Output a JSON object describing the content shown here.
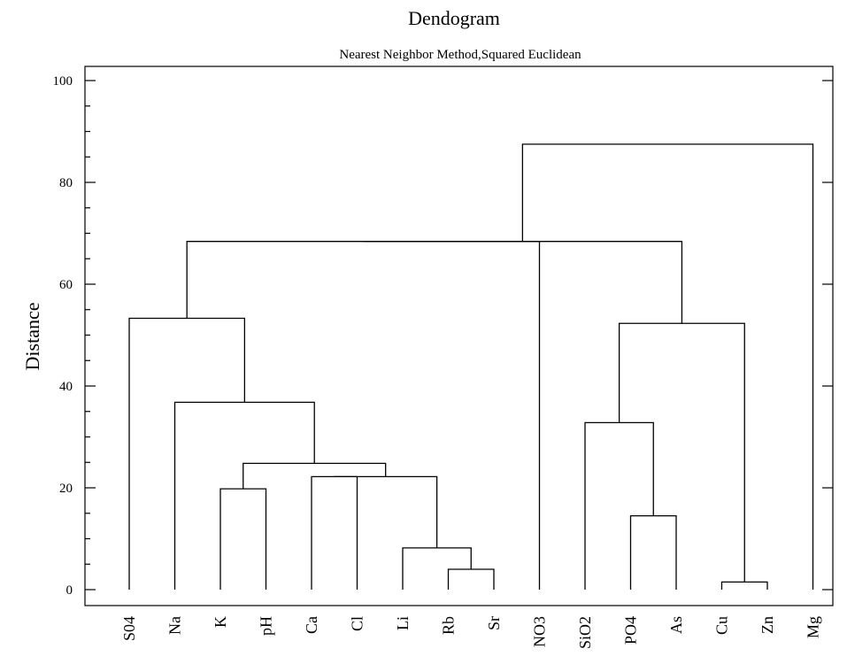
{
  "chart_data": {
    "type": "dendrogram",
    "title": "Dendogram",
    "subtitle": "Nearest Neighbor Method,Squared Euclidean",
    "ylabel": "Distance",
    "xlabel": "",
    "ylim": [
      0,
      100
    ],
    "yticks": [
      0,
      20,
      40,
      60,
      80,
      100
    ],
    "leaves": [
      "S04",
      "Na",
      "K",
      "pH",
      "Ca",
      "Cl",
      "Li",
      "Rb",
      "Sr",
      "NO3",
      "SiO2",
      "PO4",
      "As",
      "Cu",
      "Zn",
      "Mg"
    ],
    "merges": [
      {
        "left": "Cu",
        "right": "Zn",
        "height": 1.5
      },
      {
        "left": "Rb",
        "right": "Sr",
        "height": 4.0
      },
      {
        "left": "Li",
        "right": "Rb+Sr",
        "height": 8.2
      },
      {
        "left": "PO4",
        "right": "As",
        "height": 14.5
      },
      {
        "left": "K",
        "right": "pH",
        "height": 19.8
      },
      {
        "left": "Ca",
        "right": "Cl",
        "height": 22.2
      },
      {
        "left": "Ca+Cl",
        "right": "Li+Rb+Sr",
        "height": 22.2
      },
      {
        "left": "K+pH",
        "right": "Ca+Cl+Li+Rb+Sr",
        "height": 24.8
      },
      {
        "left": "SiO2",
        "right": "PO4+As",
        "height": 32.8
      },
      {
        "left": "Na",
        "right": "K+pH+Ca+Cl+Li+Rb+Sr",
        "height": 36.8
      },
      {
        "left": "SiO2+PO4+As",
        "right": "Cu+Zn",
        "height": 52.3
      },
      {
        "left": "S04",
        "right": "Na+K+pH+Ca+Cl+Li+Rb+Sr",
        "height": 53.3
      },
      {
        "left": "S04+Na+K+pH+Ca+Cl+Li+Rb+Sr",
        "right": "NO3",
        "height": 68.4
      },
      {
        "left": "S04+Na+K+pH+Ca+Cl+Li+Rb+Sr+NO3",
        "right": "SiO2+PO4+As+Cu+Zn",
        "height": 68.4
      },
      {
        "left": "S04+Na+K+pH+Ca+Cl+Li+Rb+Sr+NO3+SiO2+PO4+As+Cu+Zn",
        "right": "Mg",
        "height": 87.5
      }
    ]
  }
}
